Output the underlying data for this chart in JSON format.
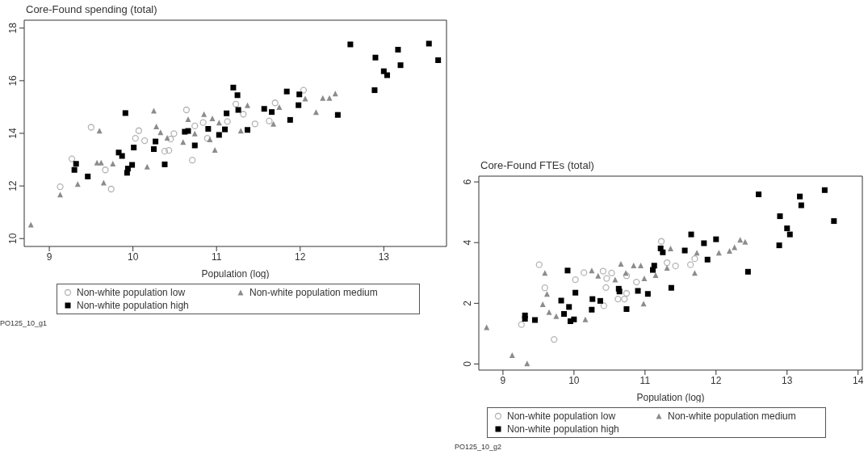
{
  "chart_data": [
    {
      "type": "scatter",
      "title": "Core-Found spending (total)",
      "xlabel": "Population (log)",
      "xlim": [
        8.7,
        13.75
      ],
      "xticks": [
        9,
        10,
        11,
        12,
        13
      ],
      "ylim": [
        9.7,
        18.3
      ],
      "yticks": [
        10,
        12,
        14,
        16,
        18
      ],
      "legend": "bottom",
      "annotations": [
        "PO125_10_g1"
      ],
      "series": [
        {
          "name": "Non-white population low",
          "color": "#b4b4b4",
          "marker": "circle",
          "x": [
            9.5,
            9.27,
            9.13,
            9.67,
            9.74,
            10.07,
            10.03,
            10.14,
            10.64,
            10.45,
            10.49,
            10.38,
            10.43,
            10.71,
            10.74,
            10.84,
            10.89,
            11.13,
            11.32,
            11.23,
            11.46,
            11.63,
            11.7,
            12.04
          ],
          "values": [
            14.23,
            13.03,
            11.97,
            12.61,
            11.88,
            14.1,
            13.81,
            13.72,
            14.89,
            13.78,
            13.99,
            13.32,
            13.35,
            12.98,
            14.28,
            14.41,
            13.81,
            14.45,
            14.73,
            15.11,
            14.36,
            14.47,
            15.16,
            15.64
          ]
        },
        {
          "name": "Non-white population medium",
          "color": "#8c8c8c",
          "marker": "triangle",
          "x": [
            8.78,
            9.13,
            9.34,
            9.65,
            9.57,
            9.62,
            9.76,
            10.17,
            9.6,
            10.25,
            10.28,
            10.33,
            10.6,
            10.66,
            10.85,
            10.95,
            10.98,
            10.92,
            11.03,
            11.29,
            11.37,
            11.75,
            11.68,
            12.06,
            12.19,
            12.27,
            12.35,
            12.42,
            10.74,
            10.41
          ],
          "values": [
            10.53,
            11.67,
            12.07,
            12.13,
            12.89,
            12.89,
            12.85,
            12.73,
            14.1,
            14.86,
            14.26,
            14.04,
            13.67,
            14.54,
            14.73,
            14.57,
            13.37,
            13.77,
            14.41,
            14.1,
            15.07,
            15.0,
            14.36,
            15.32,
            14.81,
            15.34,
            15.34,
            15.51,
            13.99,
            13.83
          ]
        },
        {
          "name": "Non-white population high",
          "color": "#000000",
          "marker": "square",
          "x": [
            12.6,
            12.9,
            13.17,
            13.2,
            13.0,
            13.04,
            12.89,
            13.54,
            13.65,
            11.2,
            11.25,
            11.26,
            11.84,
            11.99,
            11.98,
            11.88,
            12.45,
            11.57,
            11.66,
            11.12,
            11.37,
            11.1,
            11.03,
            10.9,
            10.62,
            10.66,
            10.74,
            10.38,
            10.27,
            10.25,
            10.01,
            9.91,
            9.83,
            9.87,
            9.99,
            9.94,
            9.93,
            9.46,
            9.32,
            9.3
          ],
          "values": [
            17.38,
            16.88,
            17.18,
            16.59,
            16.36,
            16.21,
            15.64,
            17.41,
            16.78,
            15.74,
            15.45,
            14.89,
            15.59,
            15.48,
            15.07,
            14.51,
            14.7,
            14.93,
            14.81,
            14.76,
            14.13,
            14.15,
            13.94,
            14.17,
            14.06,
            14.09,
            13.54,
            12.82,
            13.69,
            13.4,
            13.46,
            14.77,
            13.27,
            13.14,
            12.8,
            12.66,
            12.5,
            12.36,
            12.84,
            12.61
          ]
        }
      ]
    },
    {
      "type": "scatter",
      "title": "Core-Found FTEs (total)",
      "xlabel": "Population (log)",
      "xlim": [
        8.66,
        14.06
      ],
      "xticks": [
        9,
        10,
        11,
        12,
        13,
        14
      ],
      "ylim": [
        -0.2,
        6.19
      ],
      "yticks": [
        0,
        2,
        4,
        6
      ],
      "legend": "bottom",
      "annotations": [
        "PO125_10_g2"
      ],
      "series": [
        {
          "name": "Non-white population low",
          "color": "#b4b4b4",
          "marker": "circle",
          "x": [
            9.51,
            9.59,
            9.26,
            9.72,
            10.02,
            10.14,
            10.41,
            10.53,
            10.46,
            10.45,
            10.74,
            10.62,
            10.71,
            10.42,
            10.88,
            11.23,
            11.43,
            11.64,
            11.7,
            11.31,
            10.74
          ],
          "values": [
            3.27,
            2.51,
            1.3,
            0.81,
            2.78,
            3.01,
            3.06,
            3.0,
            2.82,
            2.52,
            2.33,
            2.14,
            2.14,
            1.92,
            2.7,
            4.04,
            3.23,
            3.27,
            3.47,
            3.34,
            2.91
          ]
        },
        {
          "name": "Non-white population medium",
          "color": "#8c8c8c",
          "marker": "triangle",
          "x": [
            8.77,
            9.13,
            9.34,
            9.59,
            9.62,
            9.56,
            9.65,
            9.75,
            10.16,
            10.25,
            10.34,
            10.66,
            10.84,
            10.99,
            10.98,
            10.94,
            11.36,
            11.31,
            11.73,
            11.7,
            12.04,
            12.19,
            12.26,
            12.34,
            12.41,
            10.58,
            10.73,
            11.15
          ],
          "values": [
            1.21,
            0.29,
            0.02,
            3.0,
            2.31,
            1.97,
            1.71,
            1.58,
            1.47,
            3.08,
            2.91,
            3.3,
            3.25,
            2.82,
            1.99,
            3.25,
            3.81,
            3.17,
            3.67,
            3.0,
            3.67,
            3.73,
            3.85,
            4.09,
            4.03,
            2.78,
            3.0,
            2.93
          ]
        },
        {
          "name": "Non-white population high",
          "color": "#000000",
          "marker": "square",
          "x": [
            12.6,
            13.53,
            13.18,
            13.2,
            12.9,
            13.0,
            13.04,
            12.89,
            13.66,
            11.65,
            11.83,
            12.0,
            11.56,
            11.88,
            12.45,
            11.22,
            11.25,
            11.13,
            11.11,
            11.37,
            11.04,
            10.9,
            10.63,
            10.64,
            10.74,
            10.25,
            10.26,
            10.37,
            9.91,
            10.02,
            9.82,
            9.93,
            9.86,
            9.95,
            10.0,
            9.45,
            9.31,
            9.31
          ],
          "values": [
            5.59,
            5.73,
            5.52,
            5.23,
            4.87,
            4.47,
            4.27,
            3.91,
            4.71,
            4.27,
            3.98,
            4.11,
            3.74,
            3.44,
            3.04,
            3.81,
            3.68,
            3.24,
            3.1,
            2.51,
            2.31,
            2.41,
            2.48,
            2.39,
            1.81,
            1.79,
            2.14,
            2.08,
            3.08,
            2.35,
            2.09,
            1.88,
            1.65,
            1.41,
            1.47,
            1.45,
            1.6,
            1.49
          ]
        }
      ]
    }
  ]
}
